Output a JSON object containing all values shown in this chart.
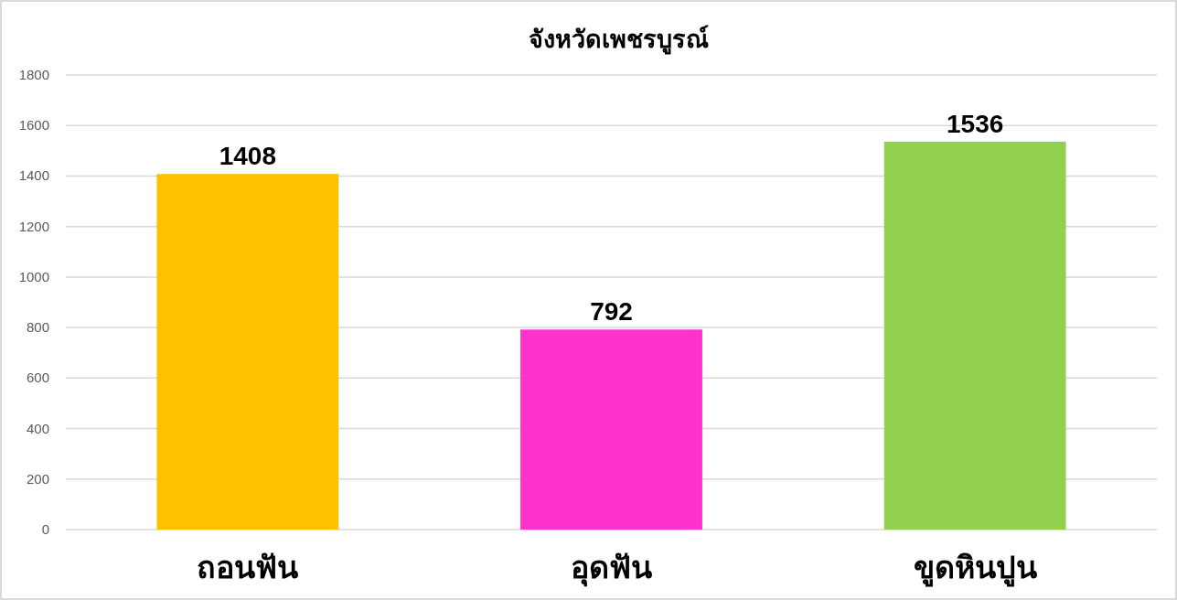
{
  "chart_data": {
    "type": "bar",
    "title": "จังหวัดเพชรบูรณ์",
    "categories": [
      "ถอนฟัน",
      "อุดฟัน",
      "ขูดหินปูน"
    ],
    "values": [
      1408,
      792,
      1536
    ],
    "colors": [
      "#ffc000",
      "#ff33cc",
      "#92d050"
    ],
    "ylim": [
      0,
      1800
    ],
    "yticks": [
      0,
      200,
      400,
      600,
      800,
      1000,
      1200,
      1400,
      1600,
      1800
    ],
    "grid": "y",
    "data_labels": true
  }
}
